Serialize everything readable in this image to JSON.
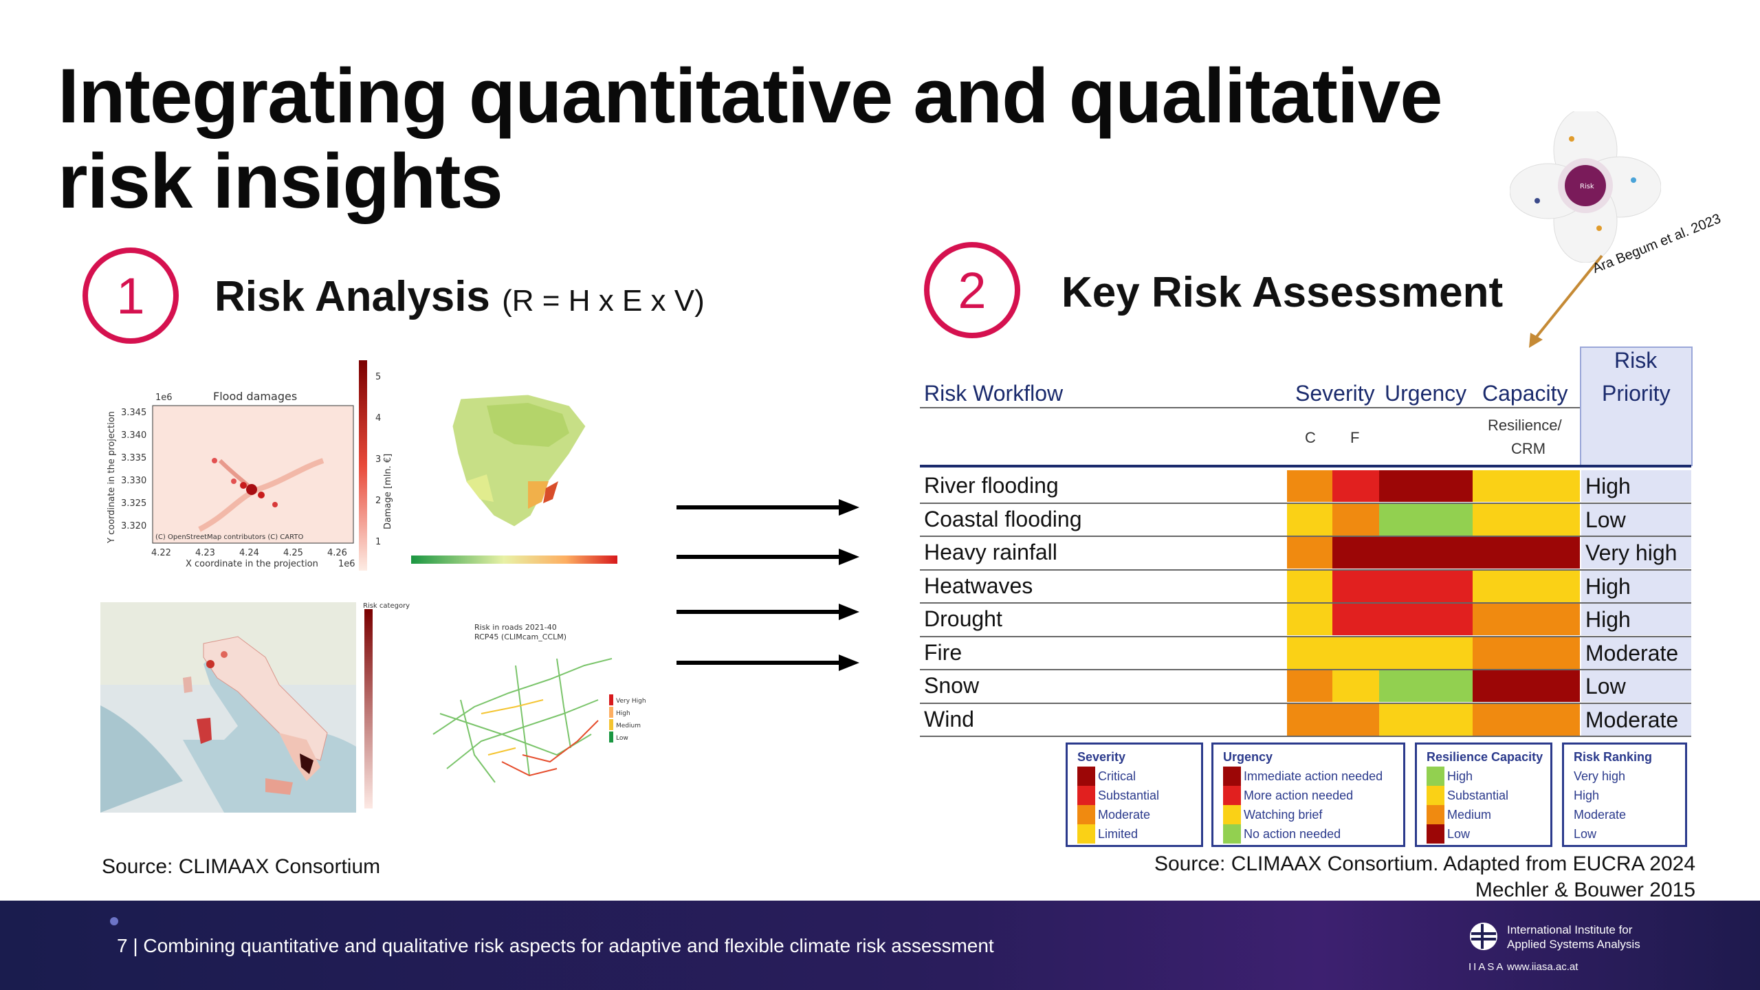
{
  "slide": {
    "title": "Integrating quantitative and qualitative risk insights"
  },
  "section1": {
    "number": "1",
    "title": "Risk Analysis",
    "subtitle": "(R = H x E x V)",
    "source": "Source: CLIMAAX Consortium",
    "chart_flood": {
      "title": "Flood damages",
      "scale_label": "1e6",
      "ylabel": "Y coordinate in the projection",
      "xlabel": "X coordinate in the projection",
      "x_ticks": [
        "4.22",
        "4.23",
        "4.24",
        "4.25",
        "4.26"
      ],
      "x_scale": "1e6",
      "y_ticks": [
        "3.345",
        "3.340",
        "3.335",
        "3.330",
        "3.325",
        "3.320"
      ],
      "colorbar_label": "Damage [mln. €]",
      "colorbar_ticks": [
        "5",
        "4",
        "3",
        "2",
        "1"
      ],
      "attribution": "(C) OpenStreetMap contributors (C) CARTO"
    },
    "chart_roads": {
      "title": "Risk in roads 2021-40",
      "subtitle": "RCP45 (CLIMcam_CCLM)",
      "legend": [
        "Very High",
        "High",
        "Medium",
        "Low"
      ]
    },
    "chart_italy": {
      "colorbar_label": "Risk category"
    }
  },
  "section2": {
    "number": "2",
    "title": "Key Risk Assessment",
    "citation": "Ara Begum et al. 2023",
    "figure_center": "Risk",
    "headers": {
      "workflow": "Risk Workflow",
      "severity": "Severity",
      "urgency": "Urgency",
      "capacity": "Capacity",
      "priority_line1": "Risk",
      "priority_line2": "Priority",
      "sub_c": "C",
      "sub_f": "F",
      "sub_resilience1": "Resilience/",
      "sub_resilience2": "CRM"
    },
    "rows": [
      {
        "label": "River flooding",
        "c": "#f08a10",
        "f": "#e1201f",
        "urgency": "#9c0606",
        "capacity": "#fad116",
        "priority": "High"
      },
      {
        "label": "Coastal flooding",
        "c": "#fad116",
        "f": "#f08a10",
        "urgency": "#92d050",
        "capacity": "#fad116",
        "priority": "Low"
      },
      {
        "label": "Heavy rainfall",
        "c": "#f08a10",
        "f": "#9c0606",
        "urgency": "#9c0606",
        "capacity": "#9c0606",
        "priority": "Very high"
      },
      {
        "label": "Heatwaves",
        "c": "#fad116",
        "f": "#e1201f",
        "urgency": "#e1201f",
        "capacity": "#fad116",
        "priority": "High"
      },
      {
        "label": "Drought",
        "c": "#fad116",
        "f": "#e1201f",
        "urgency": "#e1201f",
        "capacity": "#f08a10",
        "priority": "High"
      },
      {
        "label": "Fire",
        "c": "#fad116",
        "f": "#fad116",
        "urgency": "#fad116",
        "capacity": "#f08a10",
        "priority": "Moderate"
      },
      {
        "label": "Snow",
        "c": "#f08a10",
        "f": "#fad116",
        "urgency": "#92d050",
        "capacity": "#9c0606",
        "priority": "Low"
      },
      {
        "label": "Wind",
        "c": "#f08a10",
        "f": "#f08a10",
        "urgency": "#fad116",
        "capacity": "#f08a10",
        "priority": "Moderate"
      }
    ],
    "legends": {
      "severity": {
        "title": "Severity",
        "items": [
          {
            "label": "Critical",
            "color": "#9c0606"
          },
          {
            "label": "Substantial",
            "color": "#e1201f"
          },
          {
            "label": "Moderate",
            "color": "#f08a10"
          },
          {
            "label": "Limited",
            "color": "#fad116"
          }
        ]
      },
      "urgency": {
        "title": "Urgency",
        "items": [
          {
            "label": "Immediate action needed",
            "color": "#9c0606"
          },
          {
            "label": "More action needed",
            "color": "#e1201f"
          },
          {
            "label": "Watching brief",
            "color": "#fad116"
          },
          {
            "label": "No action needed",
            "color": "#92d050"
          }
        ]
      },
      "resilience": {
        "title": "Resilience Capacity",
        "items": [
          {
            "label": "High",
            "color": "#92d050"
          },
          {
            "label": "Substantial",
            "color": "#fad116"
          },
          {
            "label": "Medium",
            "color": "#f08a10"
          },
          {
            "label": "Low",
            "color": "#9c0606"
          }
        ]
      },
      "ranking": {
        "title": "Risk Ranking",
        "items": [
          {
            "label": "Very high"
          },
          {
            "label": "High"
          },
          {
            "label": "Moderate"
          },
          {
            "label": "Low"
          }
        ]
      }
    },
    "source_line1": "Source: CLIMAAX Consortium. Adapted from EUCRA 2024",
    "source_line2": "Mechler & Bouwer 2015"
  },
  "footer": {
    "text": "7  |  Combining quantitative and qualitative risk aspects for adaptive and flexible climate risk assessment",
    "org_line1": "International Institute for",
    "org_line2": "Applied Systems Analysis",
    "acronym": "IIASA",
    "url": "www.iiasa.ac.at"
  },
  "colors": {
    "accent": "#d5114f",
    "table_blue": "#1a2a6c",
    "priority_bg": "#dfe3f5"
  }
}
